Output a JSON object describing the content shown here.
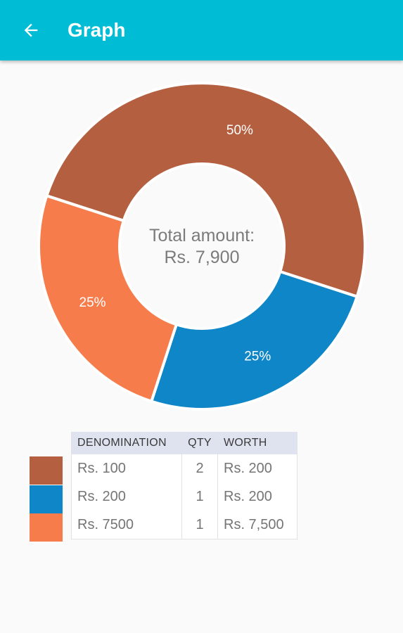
{
  "app_bar": {
    "title": "Graph",
    "background_color": "#00bcd4",
    "back_icon": "arrow-back-icon"
  },
  "center": {
    "line1": "Total amount:",
    "line2": "Rs. 7,900"
  },
  "chart_data": {
    "type": "pie",
    "variant": "donut",
    "slices": [
      {
        "category": "Rs. 100",
        "value": 50,
        "label": "50%",
        "color": "#b45f40"
      },
      {
        "category": "Rs. 200",
        "value": 25,
        "label": "25%",
        "color": "#0f86c7"
      },
      {
        "category": "Rs. 7500",
        "value": 25,
        "label": "25%",
        "color": "#f67d4b"
      }
    ]
  },
  "table": {
    "headers": {
      "denomination": "DENOMINATION",
      "qty": "QTY",
      "worth": "WORTH"
    },
    "rows": [
      {
        "denomination": "Rs. 100",
        "qty": "2",
        "worth": "Rs. 200",
        "color": "#b45f40"
      },
      {
        "denomination": "Rs. 200",
        "qty": "1",
        "worth": "Rs. 200",
        "color": "#0f86c7"
      },
      {
        "denomination": "Rs. 7500",
        "qty": "1",
        "worth": "Rs. 7,500",
        "color": "#f67d4b"
      }
    ]
  }
}
